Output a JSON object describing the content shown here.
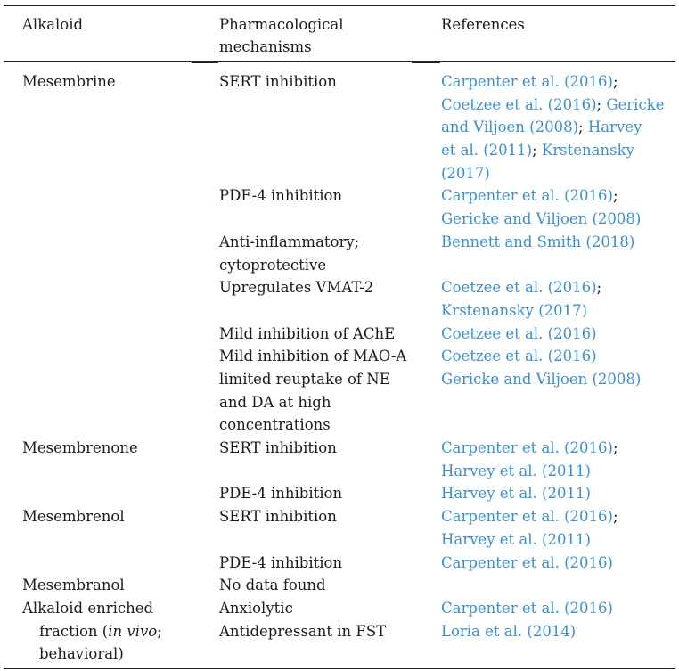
{
  "table": {
    "headers": {
      "col1": "Alkaloid",
      "col2_line1": "Pharmacological",
      "col2_line2": "mechanisms",
      "col3": "References"
    },
    "alkaloids": {
      "mesembrine": "Mesembrine",
      "mesembrenone": "Mesembrenone",
      "mesembrenol": "Mesembrenol",
      "mesembranol": "Mesembranol",
      "enriched_line1": "Alkaloid enriched",
      "enriched_line2_a": "fraction (",
      "enriched_line2_italic": "in vivo",
      "enriched_line2_b": ";",
      "enriched_line3": "behavioral)"
    },
    "mechanisms": {
      "m1": "SERT inhibition",
      "m2": "PDE-4 inhibition",
      "m3_line1": "Anti-inflammatory;",
      "m3_line2": "cytoprotective",
      "m4": "Upregulates VMAT-2",
      "m5": "Mild inhibition of AChE",
      "m6": "Mild inhibition of MAO-A",
      "m7_line1": "limited reuptake of NE",
      "m7_line2": "and DA at high",
      "m7_line3": "concentrations",
      "m8": "SERT inhibition",
      "m9": "PDE-4 inhibition",
      "m10": "SERT inhibition",
      "m11": "PDE-4 inhibition",
      "m12": "No data found",
      "m13": "Anxiolytic",
      "m14": "Antidepressant in FST"
    },
    "references": {
      "r1_l1": "Carpenter et al. (2016)",
      "r1_l2a": "Coetzee et al. (2016)",
      "r1_l2b": "Gericke",
      "r1_l3a": "and Viljoen (2008)",
      "r1_l3b": "Harvey",
      "r1_l4a": "et al. (2011)",
      "r1_l4b": "Krstenansky",
      "r1_l5": "(2017)",
      "r2_l1": "Carpenter et al. (2016)",
      "r2_l2": "Gericke and Viljoen (2008)",
      "r3": "Bennett and Smith (2018)",
      "r4_l1": "Coetzee et al. (2016)",
      "r4_l2": "Krstenansky (2017)",
      "r5": "Coetzee et al. (2016)",
      "r6": "Coetzee et al. (2016)",
      "r7": "Gericke and Viljoen (2008)",
      "r8_l1": "Carpenter et al. (2016)",
      "r8_l2": "Harvey et al. (2011)",
      "r9": "Harvey et al. (2011)",
      "r10_l1": "Carpenter et al. (2016)",
      "r10_l2": "Harvey et al. (2011)",
      "r11": "Carpenter et al. (2016)",
      "r13": "Carpenter et al. (2016)",
      "r14": "Loria et al. (2014)",
      "separator": ";"
    }
  }
}
